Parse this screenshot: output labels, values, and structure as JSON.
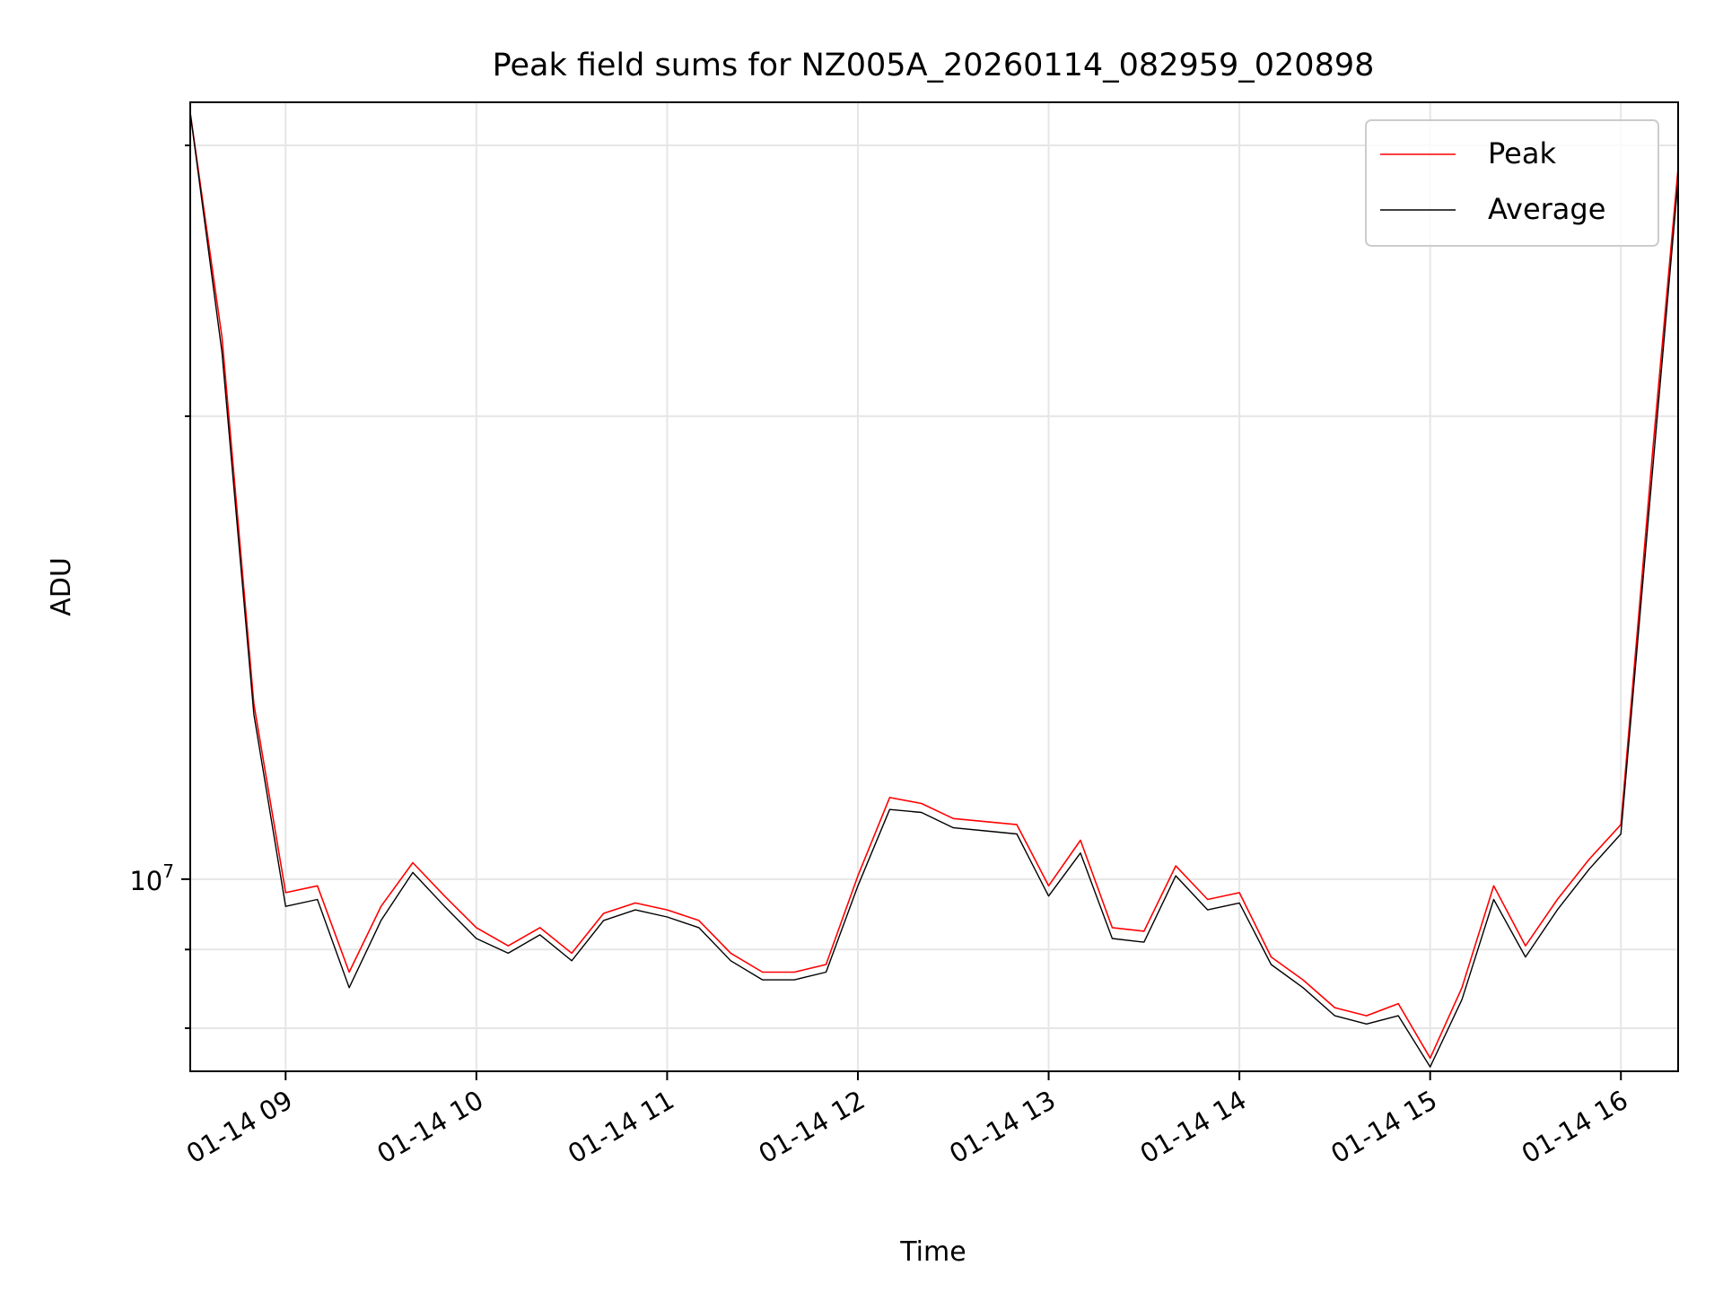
{
  "chart_data": {
    "type": "line",
    "title": "Peak field sums for NZ005A_20260114_082959_020898",
    "xlabel": "Time",
    "ylabel": "ADU",
    "x_axis_type": "time",
    "xlim": [
      "2026-01-14 08:30",
      "2026-01-14 16:18"
    ],
    "y_scale": "log",
    "ylim": [
      7500000,
      32000000
    ],
    "grid": true,
    "legend_position": "top-right",
    "x_ticks": [
      {
        "value": "2026-01-14 09:00",
        "label": "01-14 09"
      },
      {
        "value": "2026-01-14 10:00",
        "label": "01-14 10"
      },
      {
        "value": "2026-01-14 11:00",
        "label": "01-14 11"
      },
      {
        "value": "2026-01-14 12:00",
        "label": "01-14 12"
      },
      {
        "value": "2026-01-14 13:00",
        "label": "01-14 13"
      },
      {
        "value": "2026-01-14 14:00",
        "label": "01-14 14"
      },
      {
        "value": "2026-01-14 15:00",
        "label": "01-14 15"
      },
      {
        "value": "2026-01-14 16:00",
        "label": "01-14 16"
      }
    ],
    "y_ticks_major": [
      {
        "value": 10000000,
        "base": "10",
        "exp": "7"
      }
    ],
    "y_ticks_minor": [
      8000000,
      9000000,
      20000000,
      30000000
    ],
    "x": [
      "2026-01-14 08:30",
      "2026-01-14 08:40",
      "2026-01-14 08:50",
      "2026-01-14 09:00",
      "2026-01-14 09:10",
      "2026-01-14 09:20",
      "2026-01-14 09:30",
      "2026-01-14 09:40",
      "2026-01-14 09:50",
      "2026-01-14 10:00",
      "2026-01-14 10:10",
      "2026-01-14 10:20",
      "2026-01-14 10:30",
      "2026-01-14 10:40",
      "2026-01-14 10:50",
      "2026-01-14 11:00",
      "2026-01-14 11:10",
      "2026-01-14 11:20",
      "2026-01-14 11:30",
      "2026-01-14 11:40",
      "2026-01-14 11:50",
      "2026-01-14 12:00",
      "2026-01-14 12:10",
      "2026-01-14 12:20",
      "2026-01-14 12:30",
      "2026-01-14 12:40",
      "2026-01-14 12:50",
      "2026-01-14 13:00",
      "2026-01-14 13:10",
      "2026-01-14 13:20",
      "2026-01-14 13:30",
      "2026-01-14 13:40",
      "2026-01-14 13:50",
      "2026-01-14 14:00",
      "2026-01-14 14:10",
      "2026-01-14 14:20",
      "2026-01-14 14:30",
      "2026-01-14 14:40",
      "2026-01-14 14:50",
      "2026-01-14 15:00",
      "2026-01-14 15:10",
      "2026-01-14 15:20",
      "2026-01-14 15:30",
      "2026-01-14 15:40",
      "2026-01-14 15:50",
      "2026-01-14 16:00",
      "2026-01-14 16:10",
      "2026-01-14 16:18"
    ],
    "series": [
      {
        "name": "Peak",
        "color": "#ff0000",
        "values": [
          31500000,
          22500000,
          13000000,
          9800000,
          9900000,
          8700000,
          9600000,
          10250000,
          9750000,
          9300000,
          9050000,
          9300000,
          8950000,
          9500000,
          9650000,
          9550000,
          9400000,
          8950000,
          8700000,
          8700000,
          8800000,
          10050000,
          11300000,
          11200000,
          10950000,
          10900000,
          10850000,
          9900000,
          10600000,
          9300000,
          9250000,
          10200000,
          9700000,
          9800000,
          8900000,
          8600000,
          8250000,
          8150000,
          8300000,
          7650000,
          8500000,
          9900000,
          9050000,
          9700000,
          10300000,
          10850000,
          19000000,
          29000000
        ]
      },
      {
        "name": "Average",
        "color": "#000000",
        "values": [
          31500000,
          22000000,
          12800000,
          9600000,
          9700000,
          8500000,
          9400000,
          10100000,
          9600000,
          9150000,
          8950000,
          9200000,
          8850000,
          9400000,
          9550000,
          9450000,
          9300000,
          8850000,
          8600000,
          8600000,
          8700000,
          9900000,
          11100000,
          11050000,
          10800000,
          10750000,
          10700000,
          9750000,
          10400000,
          9150000,
          9100000,
          10050000,
          9550000,
          9650000,
          8800000,
          8500000,
          8150000,
          8050000,
          8150000,
          7550000,
          8350000,
          9700000,
          8900000,
          9550000,
          10150000,
          10700000,
          18500000,
          28500000
        ]
      }
    ]
  }
}
